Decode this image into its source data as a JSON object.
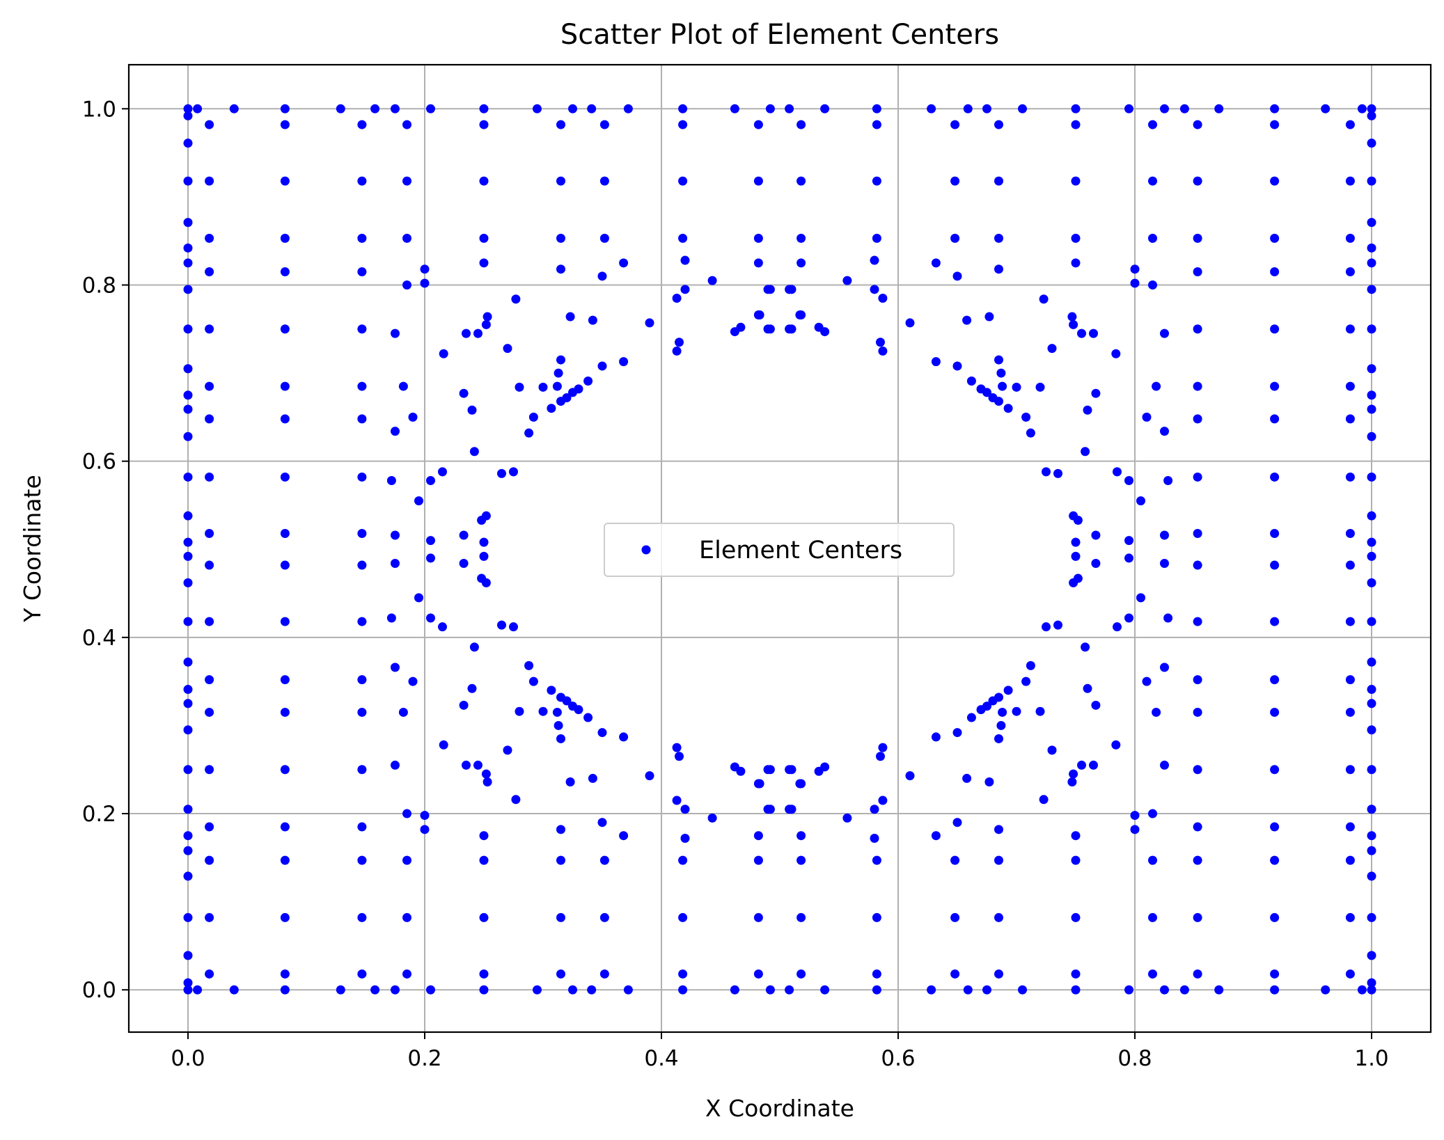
{
  "chart_data": {
    "type": "scatter",
    "title": "Scatter Plot of Element Centers",
    "xlabel": "X Coordinate",
    "ylabel": "Y Coordinate",
    "xlim": [
      -0.05,
      1.05
    ],
    "ylim": [
      -0.048,
      1.05
    ],
    "xticks": [
      "0.0",
      "0.2",
      "0.4",
      "0.6",
      "0.8",
      "1.0"
    ],
    "yticks": [
      "0.0",
      "0.2",
      "0.4",
      "0.6",
      "0.8",
      "1.0"
    ],
    "grid": true,
    "legend_position": "center",
    "series": [
      {
        "name": "Element Centers",
        "color": "#0000ff",
        "note_pattern": "points symmetric about x=0.5 and y=0.5",
        "points": [
          [
            0.0,
            0.0
          ],
          [
            0.008,
            0.0
          ],
          [
            0.039,
            0.0
          ],
          [
            0.082,
            0.0
          ],
          [
            0.129,
            0.0
          ],
          [
            0.158,
            0.0
          ],
          [
            0.175,
            0.0
          ],
          [
            0.205,
            0.0
          ],
          [
            0.25,
            0.0
          ],
          [
            0.295,
            0.0
          ],
          [
            0.325,
            0.0
          ],
          [
            0.341,
            0.0
          ],
          [
            0.372,
            0.0
          ],
          [
            0.418,
            0.0
          ],
          [
            0.462,
            0.0
          ],
          [
            0.492,
            0.0
          ],
          [
            0.508,
            0.0
          ],
          [
            0.538,
            0.0
          ],
          [
            0.0,
            0.0
          ],
          [
            0.008,
            0.0
          ],
          [
            0.0,
            0.008
          ],
          [
            0.0,
            0.039
          ],
          [
            0.0,
            0.082
          ],
          [
            0.0,
            0.129
          ],
          [
            0.0,
            0.158
          ],
          [
            0.0,
            0.175
          ],
          [
            0.0,
            0.205
          ],
          [
            0.0,
            0.25
          ],
          [
            0.0,
            0.295
          ],
          [
            0.0,
            0.325
          ],
          [
            0.0,
            0.341
          ],
          [
            0.0,
            0.372
          ],
          [
            0.0,
            0.418
          ],
          [
            0.0,
            0.462
          ],
          [
            0.0,
            0.492
          ],
          [
            0.018,
            0.018
          ],
          [
            0.082,
            0.018
          ],
          [
            0.147,
            0.018
          ],
          [
            0.185,
            0.018
          ],
          [
            0.25,
            0.018
          ],
          [
            0.315,
            0.018
          ],
          [
            0.352,
            0.018
          ],
          [
            0.418,
            0.018
          ],
          [
            0.482,
            0.018
          ],
          [
            0.518,
            0.018
          ],
          [
            0.018,
            0.082
          ],
          [
            0.082,
            0.082
          ],
          [
            0.147,
            0.082
          ],
          [
            0.185,
            0.082
          ],
          [
            0.25,
            0.082
          ],
          [
            0.315,
            0.082
          ],
          [
            0.352,
            0.082
          ],
          [
            0.418,
            0.082
          ],
          [
            0.482,
            0.082
          ],
          [
            0.518,
            0.082
          ],
          [
            0.018,
            0.147
          ],
          [
            0.082,
            0.147
          ],
          [
            0.147,
            0.147
          ],
          [
            0.185,
            0.147
          ],
          [
            0.25,
            0.147
          ],
          [
            0.315,
            0.147
          ],
          [
            0.352,
            0.147
          ],
          [
            0.418,
            0.147
          ],
          [
            0.482,
            0.147
          ],
          [
            0.518,
            0.147
          ],
          [
            0.018,
            0.185
          ],
          [
            0.082,
            0.185
          ],
          [
            0.147,
            0.185
          ],
          [
            0.25,
            0.175
          ],
          [
            0.315,
            0.182
          ],
          [
            0.35,
            0.19
          ],
          [
            0.368,
            0.175
          ],
          [
            0.42,
            0.172
          ],
          [
            0.482,
            0.175
          ],
          [
            0.518,
            0.175
          ],
          [
            0.018,
            0.25
          ],
          [
            0.082,
            0.25
          ],
          [
            0.147,
            0.25
          ],
          [
            0.175,
            0.255
          ],
          [
            0.185,
            0.2
          ],
          [
            0.2,
            0.198
          ],
          [
            0.2,
            0.182
          ],
          [
            0.216,
            0.278
          ],
          [
            0.235,
            0.255
          ],
          [
            0.245,
            0.255
          ],
          [
            0.252,
            0.245
          ],
          [
            0.253,
            0.236
          ],
          [
            0.27,
            0.272
          ],
          [
            0.277,
            0.216
          ],
          [
            0.323,
            0.236
          ],
          [
            0.342,
            0.24
          ],
          [
            0.39,
            0.243
          ],
          [
            0.413,
            0.275
          ],
          [
            0.415,
            0.265
          ],
          [
            0.413,
            0.215
          ],
          [
            0.42,
            0.205
          ],
          [
            0.443,
            0.195
          ],
          [
            0.462,
            0.253
          ],
          [
            0.467,
            0.248
          ],
          [
            0.483,
            0.234
          ],
          [
            0.49,
            0.25
          ],
          [
            0.49,
            0.205
          ],
          [
            0.508,
            0.25
          ],
          [
            0.508,
            0.205
          ],
          [
            0.518,
            0.234
          ],
          [
            0.533,
            0.248
          ],
          [
            0.538,
            0.253
          ],
          [
            0.018,
            0.315
          ],
          [
            0.082,
            0.315
          ],
          [
            0.147,
            0.315
          ],
          [
            0.182,
            0.315
          ],
          [
            0.233,
            0.323
          ],
          [
            0.28,
            0.316
          ],
          [
            0.3,
            0.316
          ],
          [
            0.312,
            0.315
          ],
          [
            0.313,
            0.3
          ],
          [
            0.315,
            0.285
          ],
          [
            0.35,
            0.292
          ],
          [
            0.368,
            0.287
          ],
          [
            0.018,
            0.352
          ],
          [
            0.082,
            0.352
          ],
          [
            0.147,
            0.352
          ],
          [
            0.175,
            0.366
          ],
          [
            0.19,
            0.35
          ],
          [
            0.24,
            0.342
          ],
          [
            0.288,
            0.368
          ],
          [
            0.292,
            0.35
          ],
          [
            0.307,
            0.34
          ],
          [
            0.315,
            0.332
          ],
          [
            0.32,
            0.328
          ],
          [
            0.325,
            0.322
          ],
          [
            0.33,
            0.318
          ],
          [
            0.338,
            0.309
          ],
          [
            0.018,
            0.418
          ],
          [
            0.082,
            0.418
          ],
          [
            0.147,
            0.418
          ],
          [
            0.172,
            0.422
          ],
          [
            0.195,
            0.445
          ],
          [
            0.205,
            0.422
          ],
          [
            0.215,
            0.412
          ],
          [
            0.242,
            0.389
          ],
          [
            0.265,
            0.414
          ],
          [
            0.275,
            0.412
          ],
          [
            0.018,
            0.482
          ],
          [
            0.082,
            0.482
          ],
          [
            0.147,
            0.482
          ],
          [
            0.175,
            0.484
          ],
          [
            0.205,
            0.49
          ],
          [
            0.233,
            0.484
          ],
          [
            0.248,
            0.467
          ],
          [
            0.252,
            0.462
          ],
          [
            0.25,
            0.492
          ],
          [
            0.0,
            0.508
          ],
          [
            0.0,
            0.538
          ],
          [
            0.018,
            0.518
          ],
          [
            0.082,
            0.518
          ],
          [
            0.147,
            0.518
          ],
          [
            0.175,
            0.516
          ],
          [
            0.205,
            0.51
          ],
          [
            0.233,
            0.516
          ],
          [
            0.248,
            0.533
          ],
          [
            0.252,
            0.538
          ],
          [
            0.25,
            0.508
          ]
        ]
      }
    ]
  }
}
